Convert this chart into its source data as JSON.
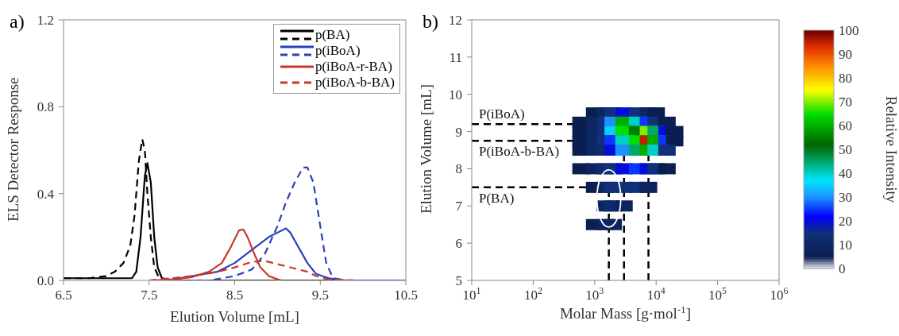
{
  "chart_data": [
    {
      "type": "line",
      "title": "a)",
      "xlabel": "Elution Volume [mL]",
      "ylabel": "ELS Detector Response",
      "xlim": [
        6.5,
        10.5
      ],
      "xticks": [
        6.5,
        7.5,
        8.5,
        9.5,
        10.5
      ],
      "ylim": [
        0,
        1.2
      ],
      "yticks": [
        {
          "value": 0,
          "label": "0.0"
        },
        0.4,
        0.8,
        1.2
      ],
      "grid": false,
      "legend": "top right",
      "marker": "none",
      "series": [
        {
          "name": "p(BA)",
          "color": "#000000",
          "line_style": "solid",
          "x": [
            6.5,
            7.0,
            7.3,
            7.35,
            7.4,
            7.45,
            7.48,
            7.52,
            7.56,
            7.6,
            7.65,
            7.8,
            10.5
          ],
          "values": [
            0.01,
            0.01,
            0.01,
            0.04,
            0.2,
            0.48,
            0.54,
            0.45,
            0.2,
            0.06,
            0.01,
            0,
            0
          ]
        },
        {
          "color": "#000000",
          "line_style": "dashed",
          "x": [
            6.5,
            6.8,
            7.0,
            7.1,
            7.2,
            7.28,
            7.33,
            7.38,
            7.42,
            7.45,
            7.48,
            7.52,
            7.56,
            7.62,
            7.8,
            8.0
          ],
          "values": [
            0.01,
            0.01,
            0.02,
            0.04,
            0.08,
            0.16,
            0.3,
            0.55,
            0.65,
            0.6,
            0.4,
            0.2,
            0.06,
            0.01,
            0,
            0
          ]
        },
        {
          "name": "p(iBoA)",
          "color": "#2a3fc0",
          "line_style": "solid",
          "x": [
            7.7,
            8.0,
            8.3,
            8.5,
            8.7,
            8.9,
            9.0,
            9.1,
            9.15,
            9.25,
            9.35,
            9.45,
            9.6,
            9.8,
            10.5
          ],
          "values": [
            0,
            0.02,
            0.04,
            0.08,
            0.14,
            0.2,
            0.22,
            0.24,
            0.22,
            0.15,
            0.08,
            0.03,
            0.01,
            0,
            0
          ]
        },
        {
          "color": "#2a3fc0",
          "line_style": "dashed",
          "x": [
            7.7,
            8.2,
            8.5,
            8.7,
            8.85,
            9.0,
            9.1,
            9.2,
            9.3,
            9.35,
            9.42,
            9.5,
            9.57,
            9.65,
            9.8
          ],
          "values": [
            0,
            0,
            0.02,
            0.05,
            0.12,
            0.25,
            0.36,
            0.45,
            0.52,
            0.52,
            0.45,
            0.25,
            0.08,
            0.01,
            0
          ]
        },
        {
          "name": "p(iBoA-r-BA)",
          "color": "#c8372d",
          "line_style": "solid",
          "x": [
            7.5,
            7.8,
            8.0,
            8.2,
            8.35,
            8.45,
            8.55,
            8.6,
            8.65,
            8.72,
            8.8,
            8.9,
            9.0,
            9.05
          ],
          "values": [
            0,
            0.005,
            0.015,
            0.04,
            0.08,
            0.15,
            0.23,
            0.235,
            0.2,
            0.13,
            0.06,
            0.02,
            0.005,
            0
          ]
        },
        {
          "name": "p(iBoA-b-BA)",
          "color": "#c8372d",
          "line_style": "dashed",
          "x": [
            7.5,
            8.0,
            8.3,
            8.5,
            8.7,
            8.85,
            9.0,
            9.2,
            9.35,
            9.45,
            9.6,
            9.9
          ],
          "values": [
            0,
            0.02,
            0.04,
            0.06,
            0.085,
            0.09,
            0.075,
            0.055,
            0.04,
            0.02,
            0.005,
            0
          ]
        }
      ]
    },
    {
      "type": "scatter",
      "title": "b)",
      "xlabel": "Molar Mass [g·mol$^{-1}$]",
      "ylabel": "Elution Volume [mL]",
      "clabel": "Relative Intensity",
      "log": "x",
      "grid": false,
      "marker": "square",
      "xlim": [
        10,
        1000000
      ],
      "xticks": [
        {
          "value": 10,
          "label": "10$^{1}$"
        },
        {
          "value": 100,
          "label": "10$^{2}$"
        },
        {
          "value": 1000,
          "label": "10$^{3}$"
        },
        {
          "value": 10000,
          "label": "10$^{4}$"
        },
        {
          "value": 100000,
          "label": "10$^{5}$"
        },
        {
          "value": 1000000,
          "label": "10$^{6}$"
        }
      ],
      "ylim": [
        5,
        12
      ],
      "yticks": [
        5,
        6,
        7,
        8,
        9,
        10,
        11,
        12
      ],
      "clim": [
        0,
        100
      ],
      "cticks": [
        0,
        10,
        20,
        30,
        40,
        50,
        60,
        70,
        80,
        90,
        100
      ],
      "ref_lines": [
        {
          "axis": "y",
          "value": 9.2,
          "label": "P(iBoA)",
          "color": "#000000",
          "line_style": "dashed"
        },
        {
          "axis": "y",
          "value": 8.75,
          "label": "P(iBoA-b-BA)",
          "color": "#000000",
          "line_style": "dashed"
        },
        {
          "axis": "y",
          "value": 7.5,
          "label": "P(BA)",
          "color": "#000000",
          "line_style": "dashed"
        },
        {
          "axis": "x",
          "value": 3000,
          "color": "#000000",
          "line_style": "dashed"
        },
        {
          "axis": "x",
          "value": 7500,
          "color": "#000000",
          "line_style": "dashed"
        },
        {
          "axis": "x",
          "value": 1700,
          "color": "#000000",
          "line_style": "dashed"
        }
      ],
      "series": [
        {
          "x": [
            1000,
            1500,
            2000,
            3000,
            5000,
            7500,
            10000,
            600,
            1000,
            1500,
            2000,
            3000,
            5000,
            7500,
            10000,
            15000,
            600,
            1000,
            1500,
            2000,
            3000,
            5000,
            7500,
            10000,
            15000,
            20000,
            600,
            1000,
            1500,
            2000,
            3000,
            5000,
            7500,
            10000,
            15000,
            20000,
            600,
            1000,
            1500,
            2000,
            3000,
            5000,
            7500,
            10000,
            15000,
            600,
            1000,
            1500,
            2000,
            3000,
            5000,
            7500,
            10000,
            15000,
            1000,
            1500,
            2000,
            3000,
            5000,
            7500,
            1500,
            2000,
            3000,
            1000,
            1500,
            2000
          ],
          "values": [
            9.5,
            9.5,
            9.5,
            9.5,
            9.5,
            9.5,
            9.5,
            9.25,
            9.25,
            9.25,
            9.25,
            9.25,
            9.25,
            9.25,
            9.25,
            9.25,
            9,
            9,
            9,
            9,
            9,
            9,
            9,
            9,
            9,
            9,
            8.75,
            8.75,
            8.75,
            8.75,
            8.75,
            8.75,
            8.75,
            8.75,
            8.75,
            8.75,
            8.5,
            8.5,
            8.5,
            8.5,
            8.5,
            8.5,
            8.5,
            8.5,
            8.5,
            8,
            8,
            8,
            8,
            8,
            8,
            8,
            8,
            8,
            7.5,
            7.5,
            7.5,
            7.5,
            7.5,
            7.5,
            7,
            7,
            7,
            6.5,
            6.5,
            6.5
          ],
          "cvalues": [
            5,
            10,
            15,
            20,
            15,
            10,
            5,
            5,
            10,
            15,
            30,
            60,
            40,
            25,
            15,
            5,
            5,
            10,
            15,
            35,
            65,
            55,
            70,
            45,
            20,
            5,
            5,
            10,
            15,
            25,
            40,
            65,
            95,
            60,
            25,
            5,
            5,
            10,
            12,
            20,
            30,
            45,
            60,
            40,
            15,
            5,
            8,
            12,
            15,
            20,
            25,
            20,
            15,
            5,
            5,
            10,
            15,
            15,
            15,
            8,
            10,
            12,
            8,
            5,
            8,
            8
          ]
        }
      ]
    }
  ]
}
